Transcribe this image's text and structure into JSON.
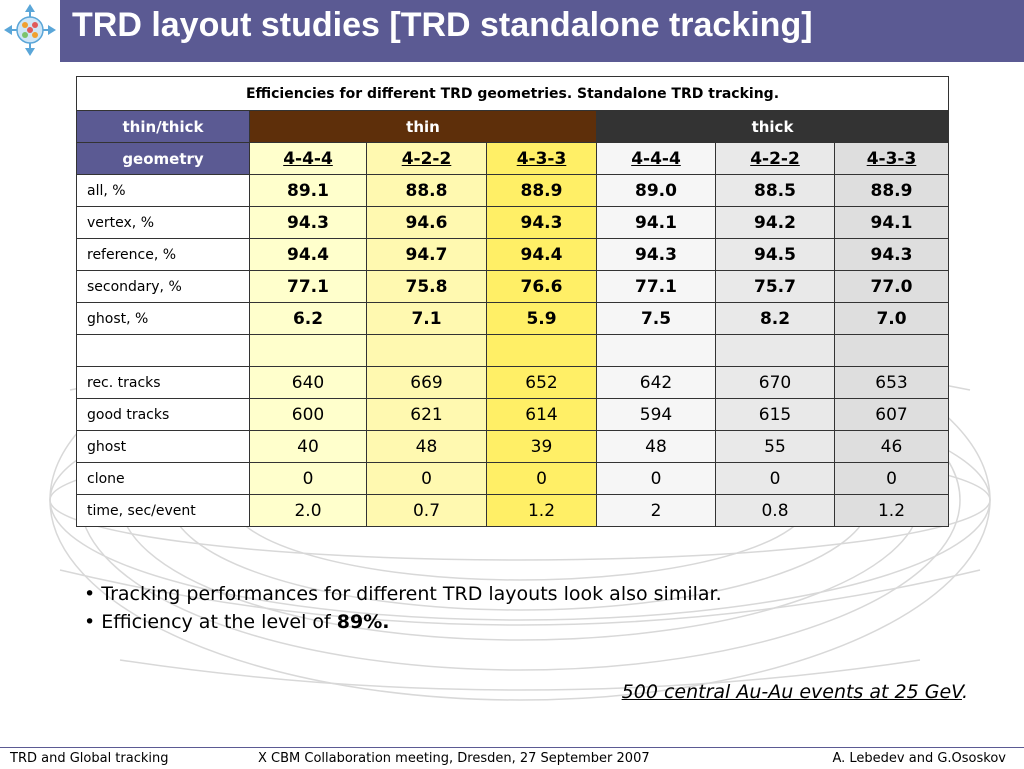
{
  "title": "TRD layout studies [TRD standalone tracking]",
  "colors": {
    "title_bar": "#5b5a93",
    "thin_header": "#5e2f0a",
    "thick_header": "#333333",
    "yellow_light": "#ffffcc",
    "yellow_mid": "#fff9b0",
    "yellow_dark": "#ffef66",
    "gray_light": "#f6f6f6",
    "gray_mid": "#e9e9e9",
    "gray_dark": "#dedede"
  },
  "table": {
    "caption": "Efficiencies for different TRD geometries. Standalone TRD tracking.",
    "group_label": "thin/thick",
    "geometry_label": "geometry",
    "thin_label": "thin",
    "thick_label": "thick",
    "geometries": [
      "4-4-4",
      "4-2-2",
      "4-3-3",
      "4-4-4",
      "4-2-2",
      "4-3-3"
    ],
    "rows": [
      {
        "label": "all, %",
        "values": [
          "89.1",
          "88.8",
          "88.9",
          "89.0",
          "88.5",
          "88.9"
        ]
      },
      {
        "label": "vertex, %",
        "values": [
          "94.3",
          "94.6",
          "94.3",
          "94.1",
          "94.2",
          "94.1"
        ]
      },
      {
        "label": "reference, %",
        "values": [
          "94.4",
          "94.7",
          "94.4",
          "94.3",
          "94.5",
          "94.3"
        ]
      },
      {
        "label": "secondary, %",
        "values": [
          "77.1",
          "75.8",
          "76.6",
          "77.1",
          "75.7",
          "77.0"
        ]
      },
      {
        "label": "ghost, %",
        "values": [
          "6.2",
          "7.1",
          "5.9",
          "7.5",
          "8.2",
          "7.0"
        ]
      },
      {
        "label": "",
        "values": [
          "",
          "",
          "",
          "",
          "",
          ""
        ]
      },
      {
        "label": "rec. tracks",
        "values": [
          "640",
          "669",
          "652",
          "642",
          "670",
          "653"
        ]
      },
      {
        "label": "good tracks",
        "values": [
          "600",
          "621",
          "614",
          "594",
          "615",
          "607"
        ]
      },
      {
        "label": "ghost",
        "values": [
          "40",
          "48",
          "39",
          "48",
          "55",
          "46"
        ]
      },
      {
        "label": "clone",
        "values": [
          "0",
          "0",
          "0",
          "0",
          "0",
          "0"
        ]
      },
      {
        "label": "time, sec/event",
        "values": [
          "2.0",
          "0.7",
          "1.2",
          "2",
          "0.8",
          "1.2"
        ]
      }
    ]
  },
  "bullets": [
    {
      "text": "Tracking performances for different TRD layouts look also similar.",
      "bold": ""
    },
    {
      "text": "Efficiency at the level of ",
      "bold": "89%."
    }
  ],
  "note": {
    "text": "500 central Au-Au events at 25 GeV",
    "suffix": "."
  },
  "footer": {
    "left": "TRD and Global tracking",
    "center": "X CBM Collaboration meeting, Dresden, 27 September 2007",
    "right": "A. Lebedev and G.Ososkov"
  }
}
